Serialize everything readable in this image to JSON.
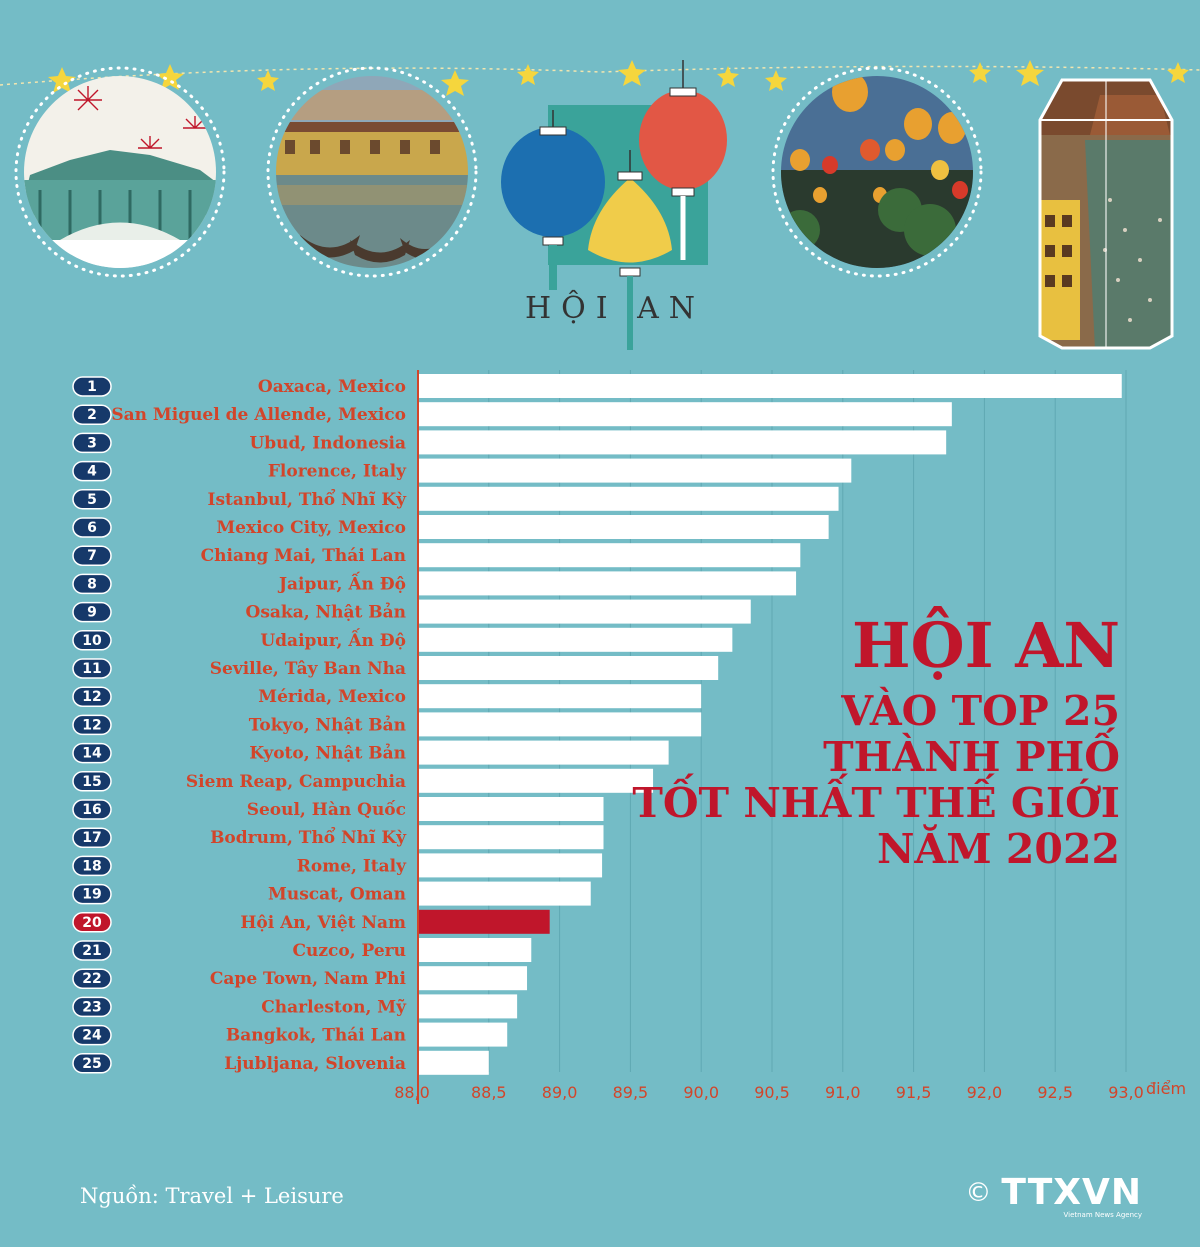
{
  "header": {
    "logo_text": "HỘI AN"
  },
  "headline": {
    "line1": "HỘI AN",
    "line2": "VÀO TOP 25",
    "line3": "THÀNH PHỐ",
    "line4": "TỐT NHẤT THẾ GIỚI",
    "line5": "NĂM 2022"
  },
  "colors": {
    "background": "#74bcc6",
    "bar": "#ffffff",
    "highlight_bar": "#c0162b",
    "label": "#d2452a",
    "rank_badge": "#16396a",
    "highlight_badge": "#c0162b",
    "headline": "#c0162b"
  },
  "chart_data": {
    "type": "bar",
    "orientation": "horizontal",
    "ranks": [
      "1",
      "2",
      "3",
      "4",
      "5",
      "6",
      "7",
      "8",
      "9",
      "10",
      "11",
      "12",
      "12",
      "14",
      "15",
      "16",
      "17",
      "18",
      "19",
      "20",
      "21",
      "22",
      "23",
      "24",
      "25"
    ],
    "categories": [
      "Oaxaca, Mexico",
      "San Miguel de Allende, Mexico",
      "Ubud, Indonesia",
      "Florence, Italy",
      "Istanbul, Thổ Nhĩ Kỳ",
      "Mexico City, Mexico",
      "Chiang Mai, Thái Lan",
      "Jaipur, Ấn Độ",
      "Osaka, Nhật Bản",
      "Udaipur, Ấn Độ",
      "Seville, Tây Ban Nha",
      "Mérida, Mexico",
      "Tokyo, Nhật Bản",
      "Kyoto, Nhật Bản",
      "Siem Reap, Campuchia",
      "Seoul, Hàn Quốc",
      "Bodrum, Thổ Nhĩ Kỳ",
      "Rome, Italy",
      "Muscat, Oman",
      "Hội An, Việt Nam",
      "Cuzco, Peru",
      "Cape Town, Nam Phi",
      "Charleston, Mỹ",
      "Bangkok, Thái Lan",
      "Ljubljana, Slovenia"
    ],
    "values": [
      92.97,
      91.77,
      91.73,
      91.06,
      90.97,
      90.9,
      90.7,
      90.67,
      90.35,
      90.22,
      90.12,
      90.0,
      90.0,
      89.77,
      89.66,
      89.31,
      89.31,
      89.3,
      89.22,
      88.93,
      88.8,
      88.77,
      88.7,
      88.63,
      88.5
    ],
    "highlight_index": 19,
    "xlim": [
      88.0,
      93.0
    ],
    "xticks": [
      "88,0",
      "88,5",
      "89,0",
      "89,5",
      "90,0",
      "90,5",
      "91,0",
      "91,5",
      "92,0",
      "92,5",
      "93,0"
    ],
    "xlabel": "điểm",
    "grid": true
  },
  "footer": {
    "source": "Nguồn: Travel + Leisure",
    "copyright_symbol": "©",
    "logo_text": "TTXVN",
    "agency": "Vietnam News Agency"
  }
}
